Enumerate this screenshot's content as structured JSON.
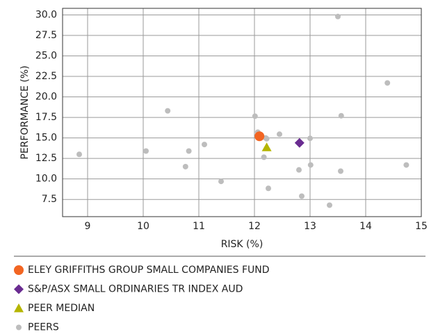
{
  "chart_data": {
    "type": "scatter",
    "xlabel": "RISK (%)",
    "ylabel": "PERFORMANCE (%)",
    "xlim": [
      8.55,
      15.0
    ],
    "ylim": [
      5.4,
      30.8
    ],
    "xticks": [
      9,
      10,
      11,
      12,
      13,
      14,
      15
    ],
    "yticks": [
      {
        "value": 7.5,
        "label": "7.5"
      },
      {
        "value": 10,
        "label": "10.0"
      },
      12.5,
      {
        "value": 15,
        "label": "15.0"
      },
      17.5,
      {
        "value": 20,
        "label": "20.0"
      },
      22.5,
      {
        "value": 25,
        "label": "25.0"
      },
      27.5,
      {
        "value": 30,
        "label": "30.0"
      }
    ],
    "grid": true,
    "series": [
      {
        "name": "ELEY GRIFFITHS GROUP SMALL COMPANIES FUND",
        "color": "#f26522",
        "marker": "circle",
        "x": [
          12.09
        ],
        "values": [
          15.2
        ]
      },
      {
        "name": "S&P/ASX SMALL ORDINARIES TR INDEX AUD",
        "color": "#6a2c91",
        "marker": "diamond",
        "x": [
          12.81
        ],
        "values": [
          14.4
        ]
      },
      {
        "name": "PEER MEDIAN",
        "color": "#b5b500",
        "marker": "triangle",
        "x": [
          12.22
        ],
        "values": [
          13.85
        ]
      },
      {
        "name": "PEERS",
        "color": "#bdbdbd",
        "marker": "dot",
        "x": [
          8.85,
          10.05,
          10.44,
          10.76,
          10.82,
          11.1,
          11.4,
          12.01,
          12.06,
          12.2,
          12.22,
          12.17,
          12.25,
          12.45,
          12.8,
          12.85,
          13.0,
          13.01,
          13.35,
          13.5,
          13.56,
          13.55,
          14.39,
          14.73
        ],
        "values": [
          13.0,
          13.4,
          18.3,
          11.5,
          13.4,
          14.2,
          9.7,
          17.65,
          15.7,
          15.0,
          14.9,
          12.65,
          8.85,
          15.45,
          11.1,
          7.9,
          14.95,
          11.7,
          6.8,
          29.8,
          17.7,
          10.95,
          21.7,
          11.7
        ]
      }
    ]
  }
}
